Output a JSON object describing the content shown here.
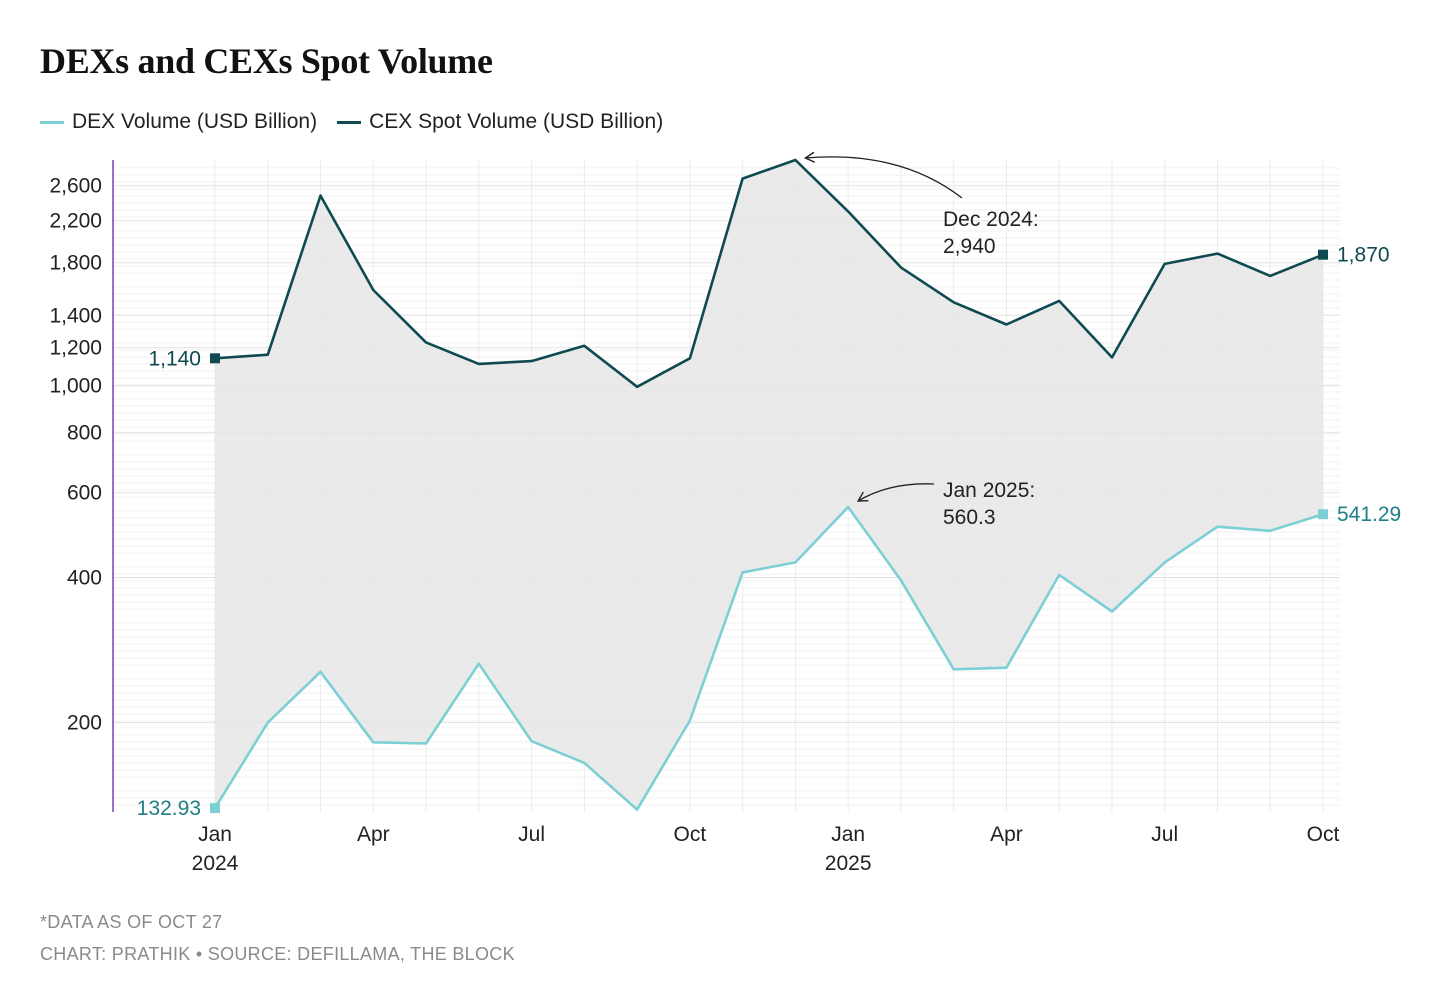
{
  "chart_data": {
    "type": "line",
    "title": "DEXs and CEXs Spot Volume",
    "x": [
      "2024-01",
      "2024-02",
      "2024-03",
      "2024-04",
      "2024-05",
      "2024-06",
      "2024-07",
      "2024-08",
      "2024-09",
      "2024-10",
      "2024-11",
      "2024-12",
      "2025-01",
      "2025-02",
      "2025-03",
      "2025-04",
      "2025-05",
      "2025-06",
      "2025-07",
      "2025-08",
      "2025-09",
      "2025-10"
    ],
    "x_tick_labels": [
      {
        "x": "2024-01",
        "month": "Jan",
        "year": "2024"
      },
      {
        "x": "2024-04",
        "month": "Apr",
        "year": ""
      },
      {
        "x": "2024-07",
        "month": "Jul",
        "year": ""
      },
      {
        "x": "2024-10",
        "month": "Oct",
        "year": ""
      },
      {
        "x": "2025-01",
        "month": "Jan",
        "year": "2025"
      },
      {
        "x": "2025-04",
        "month": "Apr",
        "year": ""
      },
      {
        "x": "2025-07",
        "month": "Jul",
        "year": ""
      },
      {
        "x": "2025-10",
        "month": "Oct",
        "year": ""
      }
    ],
    "y_scale": "log",
    "ylim": [
      133,
      2940
    ],
    "y_ticks": [
      {
        "value": 200,
        "label": "200"
      },
      {
        "value": 400,
        "label": "400"
      },
      {
        "value": 600,
        "label": "600"
      },
      {
        "value": 800,
        "label": "800"
      },
      {
        "value": 1000,
        "label": "1,000"
      },
      {
        "value": 1200,
        "label": "1,200"
      },
      {
        "value": 1400,
        "label": "1,400"
      },
      {
        "value": 1800,
        "label": "1,800"
      },
      {
        "value": 2200,
        "label": "2,200"
      },
      {
        "value": 2600,
        "label": "2,600"
      }
    ],
    "series": [
      {
        "name": "DEX Volume (USD Billion)",
        "color": "#7dcfd6",
        "values": [
          132.93,
          200,
          255,
          182,
          181,
          265,
          183,
          165,
          132,
          202,
          410,
          430,
          560.3,
          395,
          258,
          260,
          405,
          340,
          430,
          510,
          500,
          541.29
        ]
      },
      {
        "name": "CEX Spot Volume (USD Billion)",
        "color": "#0e4a4f",
        "values": [
          1140,
          1160,
          2480,
          1580,
          1230,
          1110,
          1125,
          1210,
          995,
          1140,
          2690,
          2940,
          2300,
          1760,
          1490,
          1340,
          1500,
          1145,
          1790,
          1880,
          1690,
          1870
        ]
      }
    ],
    "end_labels": [
      {
        "series": 0,
        "x": "2024-01",
        "label": "132.93"
      },
      {
        "series": 0,
        "x": "2025-10",
        "label": "541.29"
      },
      {
        "series": 1,
        "x": "2024-01",
        "label": "1,140"
      },
      {
        "series": 1,
        "x": "2025-10",
        "label": "1,870"
      }
    ],
    "annotations": [
      {
        "series": 1,
        "x": "2024-12",
        "line1": "Dec 2024:",
        "line2": "2,940"
      },
      {
        "series": 0,
        "x": "2025-01",
        "line1": "Jan 2025:",
        "line2": "560.3"
      }
    ],
    "fill_between_color": "#e6e6e6",
    "grid": true,
    "legend_position": "top-left"
  },
  "footnotes": {
    "note": "*DATA AS OF OCT 27",
    "credit": "CHART: PRATHIK • SOURCE: DEFILLAMA, THE BLOCK"
  }
}
